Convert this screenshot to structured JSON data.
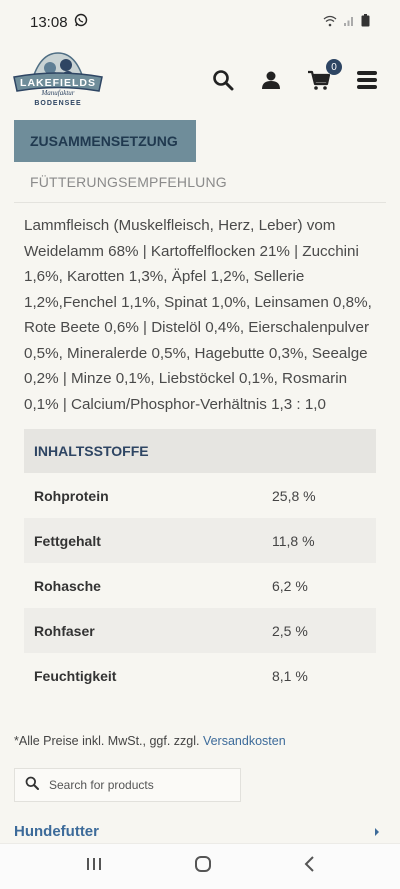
{
  "status_bar": {
    "time": "13:08",
    "icons": [
      "whatsapp-icon",
      "wifi-icon",
      "signal-icon",
      "battery-icon"
    ]
  },
  "header": {
    "logo": {
      "brand": "LAKEFIELDS",
      "sub": "Manufaktur",
      "location": "BODENSEE"
    },
    "cart_count": "0"
  },
  "tabs": {
    "active": "ZUSAMMENSETZUNG",
    "inactive": "FÜTTERUNGSEMPFEHLUNG"
  },
  "ingredients": "Lammfleisch (Muskelfleisch, Herz, Leber) vom Weidelamm 68% | Kartoffelflocken 21% | Zucchini 1,6%, Karotten 1,3%, Äpfel 1,2%, Sellerie 1,2%,Fenchel 1,1%, Spinat 1,0%, Leinsamen 0,8%, Rote Beete 0,6% | Distelöl 0,4%, Eierschalenpulver 0,5%, Mineralerde 0,5%, Hagebutte 0,3%, Seealge 0,2% | Minze 0,1%, Liebstöckel 0,1%, Rosmarin 0,1% | Calcium/Phosphor-Verhältnis 1,3 : 1,0",
  "table": {
    "title": "INHALTSSTOFFE",
    "rows": [
      {
        "label": "Rohprotein",
        "value": "25,8 %"
      },
      {
        "label": "Fettgehalt",
        "value": "11,8 %"
      },
      {
        "label": "Rohasche",
        "value": "6,2 %"
      },
      {
        "label": "Rohfaser",
        "value": "2,5 %"
      },
      {
        "label": "Feuchtigkeit",
        "value": "8,1 %"
      }
    ]
  },
  "footnote": {
    "text": "*Alle Preise inkl. MwSt., ggf. zzgl. ",
    "link": "Versandkosten"
  },
  "search": {
    "placeholder": "Search for products"
  },
  "category": {
    "label": "Hundefutter"
  },
  "colors": {
    "accent": "#6f8d9a",
    "navy": "#2e4563",
    "link": "#3d6b9a",
    "background": "#f7f6f1"
  }
}
